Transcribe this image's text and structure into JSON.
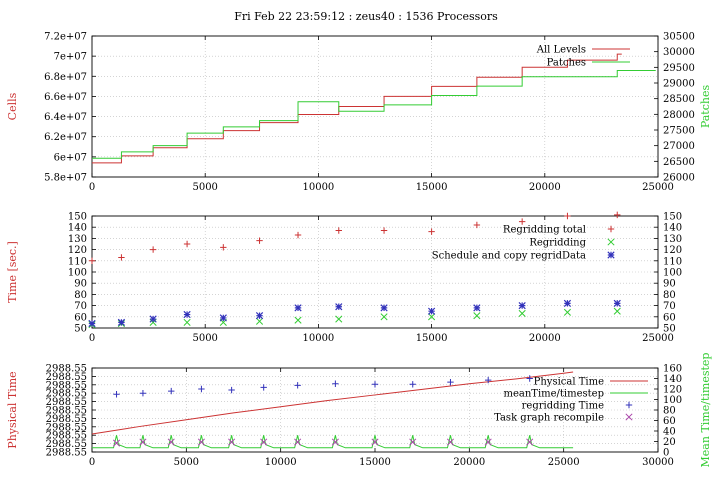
{
  "title": "Fri Feb 22 23:59:12 : zeus40 : 1536 Processors",
  "colors": {
    "red": "#cc3333",
    "green": "#33cc33",
    "blue": "#3333bb",
    "magenta": "#aa44aa"
  },
  "chart_data": [
    {
      "type": "line",
      "xlim": [
        0,
        25000
      ],
      "xticks": [
        0,
        5000,
        10000,
        15000,
        20000,
        25000
      ],
      "ylabel": "Cells",
      "ylim": [
        58000000,
        72000000
      ],
      "yticks": [
        "5.8e+07",
        "6e+07",
        "6.2e+07",
        "6.4e+07",
        "6.6e+07",
        "6.8e+07",
        "7e+07",
        "7.2e+07"
      ],
      "ylabel_right": "Patches",
      "ylim_right": [
        26000,
        30500
      ],
      "yticks_right": [
        26000,
        26500,
        27000,
        27500,
        28000,
        28500,
        29000,
        29500,
        30000,
        30500
      ],
      "grid": true,
      "legend_position": "top-right",
      "series": [
        {
          "name": "All Levels",
          "style": "step",
          "axis": "left",
          "color": "#cc3333",
          "x": [
            0,
            1300,
            2700,
            4200,
            5800,
            7400,
            9100,
            10900,
            12900,
            15000,
            17000,
            19000,
            21000,
            23200,
            23400
          ],
          "y": [
            59400000,
            60100000,
            60900000,
            61800000,
            62600000,
            63400000,
            64200000,
            65000000,
            66000000,
            67000000,
            67900000,
            68900000,
            69600000,
            70200000,
            70200000
          ]
        },
        {
          "name": "Patches",
          "style": "step",
          "axis": "right",
          "color": "#33cc33",
          "x": [
            0,
            1300,
            2700,
            4200,
            5800,
            7400,
            9100,
            10900,
            12900,
            15000,
            17000,
            19000,
            23200,
            24900
          ],
          "y": [
            26600,
            26800,
            27000,
            27400,
            27600,
            27800,
            28400,
            28100,
            28300,
            28600,
            28900,
            29200,
            29400,
            29400
          ]
        }
      ]
    },
    {
      "type": "scatter",
      "xlim": [
        0,
        25000
      ],
      "xticks": [
        0,
        5000,
        10000,
        15000,
        20000,
        25000
      ],
      "ylabel": "Time [sec.]",
      "ylim": [
        50,
        150
      ],
      "yticks": [
        50,
        60,
        70,
        80,
        90,
        100,
        110,
        120,
        130,
        140,
        150
      ],
      "ylim_right": [
        50,
        150
      ],
      "yticks_right": [
        50,
        60,
        70,
        80,
        90,
        100,
        110,
        120,
        130,
        140,
        150
      ],
      "grid": true,
      "legend_position": "top-right",
      "series": [
        {
          "name": "Regridding total",
          "marker": "plus",
          "color": "#cc3333",
          "x": [
            0,
            1300,
            2700,
            4200,
            5800,
            7400,
            9100,
            10900,
            12900,
            15000,
            17000,
            19000,
            21000,
            23200
          ],
          "y": [
            110,
            113,
            120,
            125,
            122,
            128,
            133,
            137,
            137,
            136,
            142,
            145,
            150,
            151
          ]
        },
        {
          "name": "Regridding",
          "marker": "cross",
          "color": "#33cc33",
          "x": [
            0,
            1300,
            2700,
            4200,
            5800,
            7400,
            9100,
            10900,
            12900,
            15000,
            17000,
            19000,
            21000,
            23200
          ],
          "y": [
            53,
            54,
            55,
            55,
            55,
            56,
            57,
            58,
            60,
            60,
            61,
            63,
            64,
            65
          ]
        },
        {
          "name": "Schedule and copy regridData",
          "marker": "star",
          "color": "#3333bb",
          "x": [
            0,
            1300,
            2700,
            4200,
            5800,
            7400,
            9100,
            10900,
            12900,
            15000,
            17000,
            19000,
            21000,
            23200
          ],
          "y": [
            54,
            55,
            58,
            62,
            59,
            61,
            68,
            69,
            68,
            65,
            68,
            70,
            72,
            72
          ]
        }
      ]
    },
    {
      "type": "line",
      "xlim": [
        0,
        30000
      ],
      "xticks": [
        0,
        5000,
        10000,
        15000,
        20000,
        25000,
        30000
      ],
      "ylabel": "Physical Time",
      "yticks": [
        "2988.55",
        "2988.55",
        "2988.55",
        "2988.55",
        "2988.55",
        "2988.55",
        "2988.55",
        "2988.55",
        "2988.55",
        "2988.55",
        "2988.55"
      ],
      "ylabel_right": "Mean Time/timestep",
      "ylim_right": [
        0,
        160
      ],
      "yticks_right": [
        0,
        20,
        40,
        60,
        80,
        100,
        120,
        140,
        160
      ],
      "grid": true,
      "legend_position": "top-right",
      "series": [
        {
          "name": "Physical Time",
          "style": "line",
          "axis": "left",
          "color": "#cc3333",
          "x": [
            0,
            2500,
            5000,
            7500,
            10000,
            12500,
            15000,
            17500,
            20000,
            22500,
            25000,
            25500
          ],
          "y": [
            0.0,
            0.12,
            0.23,
            0.34,
            0.44,
            0.54,
            0.63,
            0.72,
            0.81,
            0.89,
            0.98,
            1.0
          ]
        },
        {
          "name": "meanTime/timestep",
          "style": "spikes",
          "axis": "right",
          "color": "#33cc33",
          "baseline": 8,
          "spike_value": 32,
          "x_range": [
            0,
            25500
          ],
          "spike_x": [
            1300,
            2700,
            4200,
            5800,
            7400,
            9100,
            10900,
            12900,
            15000,
            17000,
            19000,
            21000,
            23200
          ]
        },
        {
          "name": "regridding Time",
          "marker": "plus",
          "axis": "right",
          "color": "#3333bb",
          "x": [
            1300,
            2700,
            4200,
            5800,
            7400,
            9100,
            10900,
            12900,
            15000,
            17000,
            19000,
            21000,
            23200
          ],
          "y": [
            110,
            112,
            116,
            120,
            118,
            123,
            127,
            130,
            129,
            129,
            133,
            137,
            140
          ]
        },
        {
          "name": "Task graph recompile",
          "marker": "cross",
          "axis": "right",
          "color": "#aa44aa",
          "x": [
            1300,
            2700,
            4200,
            5800,
            7400,
            9100,
            10900,
            12900,
            15000,
            17000,
            19000,
            21000,
            23200
          ],
          "y": [
            17,
            19,
            19,
            19,
            19,
            19,
            19,
            19,
            19,
            19,
            19,
            19,
            19
          ]
        }
      ]
    }
  ]
}
